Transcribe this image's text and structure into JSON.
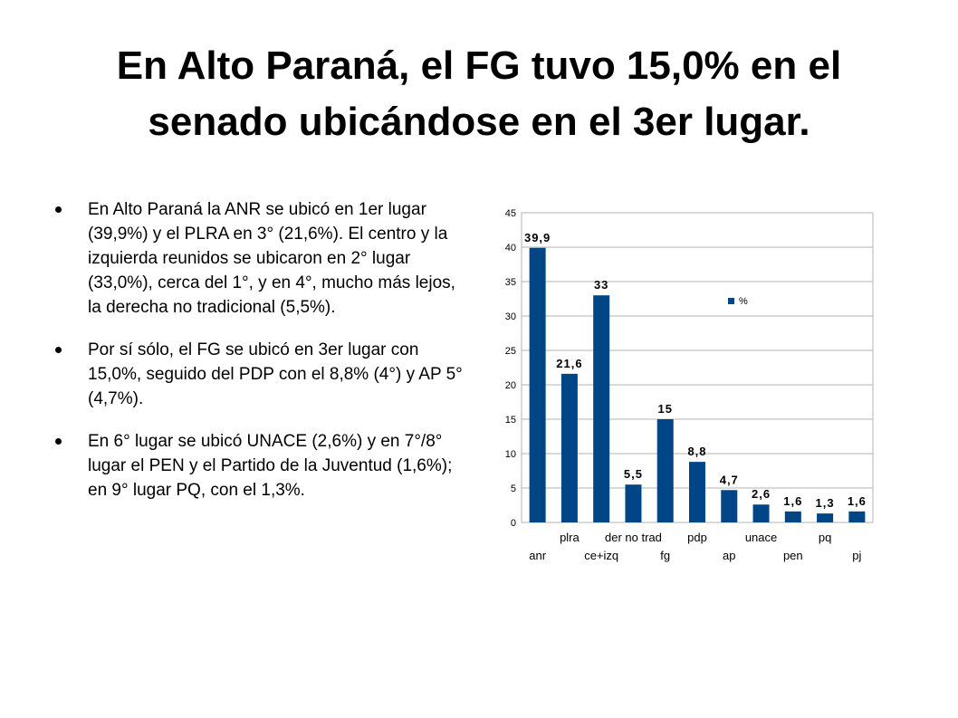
{
  "slide": {
    "title_line1": "En Alto Paraná, el FG tuvo 15,0% en el",
    "title_line2": "senado ubicándose en el 3er lugar.",
    "bullets": [
      "En Alto Paraná la ANR se ubicó en 1er lugar (39,9%) y el PLRA en 3° (21,6%). El centro y la izquierda reunidos se ubicaron en 2° lugar (33,0%), cerca del 1°, y en 4°, mucho más lejos, la derecha no tradicional (5,5%).",
      "Por sí sólo, el FG se ubicó en 3er lugar con 15,0%, seguido del PDP con el 8,8% (4°) y AP 5° (4,7%).",
      "En 6° lugar se ubicó UNACE (2,6%) y en 7°/8° lugar el PEN y el Partido de la Juventud (1,6%); en 9° lugar PQ, con el 1,3%."
    ]
  },
  "chart_data": {
    "type": "bar",
    "categories": [
      "anr",
      "plra",
      "ce+izq",
      "der no trad",
      "fg",
      "pdp",
      "ap",
      "unace",
      "pen",
      "pq",
      "pj"
    ],
    "series": [
      {
        "name": "%",
        "values": [
          39.9,
          21.6,
          33,
          5.5,
          15,
          8.8,
          4.7,
          2.6,
          1.6,
          1.3,
          1.6
        ]
      }
    ],
    "data_labels": [
      "39,9",
      "21,6",
      "33",
      "5,5",
      "15",
      "8,8",
      "4,7",
      "2,6",
      "1,6",
      "1,3",
      "1,6"
    ],
    "y_ticks": [
      0,
      5,
      10,
      15,
      20,
      25,
      30,
      35,
      40,
      45
    ],
    "ylim": [
      0,
      45
    ],
    "grid": true,
    "legend_position": "top-right",
    "bar_color": "#004586"
  }
}
